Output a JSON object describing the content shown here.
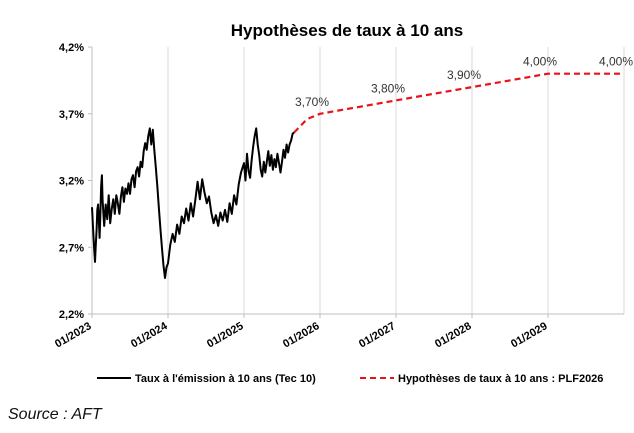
{
  "chart_data": {
    "type": "line",
    "title": "Hypothèses de taux à 10 ans",
    "xlabel": "",
    "ylabel": "",
    "ylim": [
      2.2,
      4.2
    ],
    "y_ticks": [
      "2,2%",
      "2,7%",
      "3,2%",
      "3,7%",
      "4,2%"
    ],
    "y_tick_values": [
      2.2,
      2.7,
      3.2,
      3.7,
      4.2
    ],
    "x_ticks": [
      "01/2023",
      "01/2024",
      "01/2025",
      "01/2026",
      "01/2027",
      "01/2028",
      "01/2029"
    ],
    "x_tick_values": [
      2023,
      2024,
      2025,
      2026,
      2027,
      2028,
      2029
    ],
    "xlim": [
      2023,
      2030
    ],
    "grid": "vertical",
    "legend_position": "bottom",
    "series": [
      {
        "name": "Taux à l'émission à 10 ans (Tec 10)",
        "color": "#000000",
        "style": "solid",
        "points": [
          [
            2023.0,
            3.0
          ],
          [
            2023.01,
            2.88
          ],
          [
            2023.02,
            2.78
          ],
          [
            2023.03,
            2.67
          ],
          [
            2023.04,
            2.59
          ],
          [
            2023.05,
            2.72
          ],
          [
            2023.06,
            2.83
          ],
          [
            2023.07,
            2.98
          ],
          [
            2023.08,
            3.02
          ],
          [
            2023.09,
            2.91
          ],
          [
            2023.1,
            2.77
          ],
          [
            2023.11,
            2.95
          ],
          [
            2023.12,
            3.15
          ],
          [
            2023.13,
            3.24
          ],
          [
            2023.14,
            3.05
          ],
          [
            2023.16,
            2.86
          ],
          [
            2023.18,
            3.02
          ],
          [
            2023.2,
            2.91
          ],
          [
            2023.22,
            3.09
          ],
          [
            2023.24,
            2.88
          ],
          [
            2023.26,
            2.99
          ],
          [
            2023.28,
            3.06
          ],
          [
            2023.3,
            2.95
          ],
          [
            2023.32,
            3.09
          ],
          [
            2023.34,
            3.03
          ],
          [
            2023.36,
            2.95
          ],
          [
            2023.38,
            3.08
          ],
          [
            2023.4,
            3.15
          ],
          [
            2023.42,
            3.04
          ],
          [
            2023.44,
            3.14
          ],
          [
            2023.46,
            3.1
          ],
          [
            2023.48,
            3.18
          ],
          [
            2023.5,
            3.1
          ],
          [
            2023.52,
            3.21
          ],
          [
            2023.54,
            3.24
          ],
          [
            2023.56,
            3.15
          ],
          [
            2023.58,
            3.27
          ],
          [
            2023.6,
            3.3
          ],
          [
            2023.62,
            3.23
          ],
          [
            2023.64,
            3.34
          ],
          [
            2023.66,
            3.3
          ],
          [
            2023.68,
            3.42
          ],
          [
            2023.7,
            3.48
          ],
          [
            2023.72,
            3.43
          ],
          [
            2023.74,
            3.53
          ],
          [
            2023.76,
            3.59
          ],
          [
            2023.78,
            3.47
          ],
          [
            2023.8,
            3.58
          ],
          [
            2023.82,
            3.43
          ],
          [
            2023.84,
            3.3
          ],
          [
            2023.86,
            3.15
          ],
          [
            2023.88,
            2.99
          ],
          [
            2023.9,
            2.84
          ],
          [
            2023.92,
            2.7
          ],
          [
            2023.94,
            2.57
          ],
          [
            2023.96,
            2.47
          ],
          [
            2023.98,
            2.55
          ],
          [
            2024.0,
            2.58
          ],
          [
            2024.03,
            2.72
          ],
          [
            2024.06,
            2.8
          ],
          [
            2024.09,
            2.74
          ],
          [
            2024.12,
            2.87
          ],
          [
            2024.15,
            2.8
          ],
          [
            2024.18,
            2.93
          ],
          [
            2024.21,
            2.88
          ],
          [
            2024.24,
            2.99
          ],
          [
            2024.27,
            2.9
          ],
          [
            2024.3,
            3.03
          ],
          [
            2024.33,
            2.93
          ],
          [
            2024.36,
            3.06
          ],
          [
            2024.39,
            3.19
          ],
          [
            2024.42,
            3.06
          ],
          [
            2024.45,
            3.21
          ],
          [
            2024.48,
            3.11
          ],
          [
            2024.51,
            3.03
          ],
          [
            2024.54,
            3.08
          ],
          [
            2024.57,
            2.96
          ],
          [
            2024.6,
            2.88
          ],
          [
            2024.63,
            2.94
          ],
          [
            2024.66,
            2.86
          ],
          [
            2024.69,
            2.96
          ],
          [
            2024.72,
            2.9
          ],
          [
            2024.75,
            2.98
          ],
          [
            2024.78,
            2.89
          ],
          [
            2024.81,
            3.03
          ],
          [
            2024.84,
            2.95
          ],
          [
            2024.87,
            3.09
          ],
          [
            2024.9,
            3.02
          ],
          [
            2024.93,
            3.17
          ],
          [
            2024.96,
            3.26
          ],
          [
            2025.0,
            3.33
          ],
          [
            2025.02,
            3.2
          ],
          [
            2025.04,
            3.4
          ],
          [
            2025.06,
            3.27
          ],
          [
            2025.08,
            3.22
          ],
          [
            2025.1,
            3.35
          ],
          [
            2025.12,
            3.45
          ],
          [
            2025.14,
            3.53
          ],
          [
            2025.16,
            3.59
          ],
          [
            2025.18,
            3.47
          ],
          [
            2025.2,
            3.39
          ],
          [
            2025.22,
            3.28
          ],
          [
            2025.24,
            3.23
          ],
          [
            2025.26,
            3.34
          ],
          [
            2025.28,
            3.26
          ],
          [
            2025.3,
            3.34
          ],
          [
            2025.32,
            3.42
          ],
          [
            2025.34,
            3.31
          ],
          [
            2025.36,
            3.39
          ],
          [
            2025.38,
            3.28
          ],
          [
            2025.4,
            3.36
          ],
          [
            2025.42,
            3.3
          ],
          [
            2025.44,
            3.4
          ],
          [
            2025.46,
            3.33
          ],
          [
            2025.48,
            3.26
          ],
          [
            2025.5,
            3.34
          ],
          [
            2025.52,
            3.43
          ],
          [
            2025.54,
            3.37
          ],
          [
            2025.56,
            3.47
          ],
          [
            2025.58,
            3.41
          ],
          [
            2025.6,
            3.47
          ],
          [
            2025.62,
            3.5
          ],
          [
            2025.64,
            3.55
          ],
          [
            2025.66,
            3.56
          ]
        ]
      },
      {
        "name": "Hypothèses de taux à  10 ans : PLF2026",
        "color": "#e8141b",
        "style": "dashed",
        "points": [
          [
            2025.66,
            3.56
          ],
          [
            2025.83,
            3.66
          ],
          [
            2026.0,
            3.7
          ],
          [
            2027.0,
            3.8
          ],
          [
            2028.0,
            3.9
          ],
          [
            2029.0,
            4.0
          ],
          [
            2030.0,
            4.0
          ]
        ],
        "labels": [
          {
            "x": 2026.0,
            "y": 3.7,
            "text": "3,70%"
          },
          {
            "x": 2027.0,
            "y": 3.8,
            "text": "3,80%"
          },
          {
            "x": 2028.0,
            "y": 3.9,
            "text": "3,90%"
          },
          {
            "x": 2029.0,
            "y": 4.0,
            "text": "4,00%"
          },
          {
            "x": 2030.0,
            "y": 4.0,
            "text": "4,00%"
          }
        ]
      }
    ]
  },
  "source_text": "Source : AFT"
}
